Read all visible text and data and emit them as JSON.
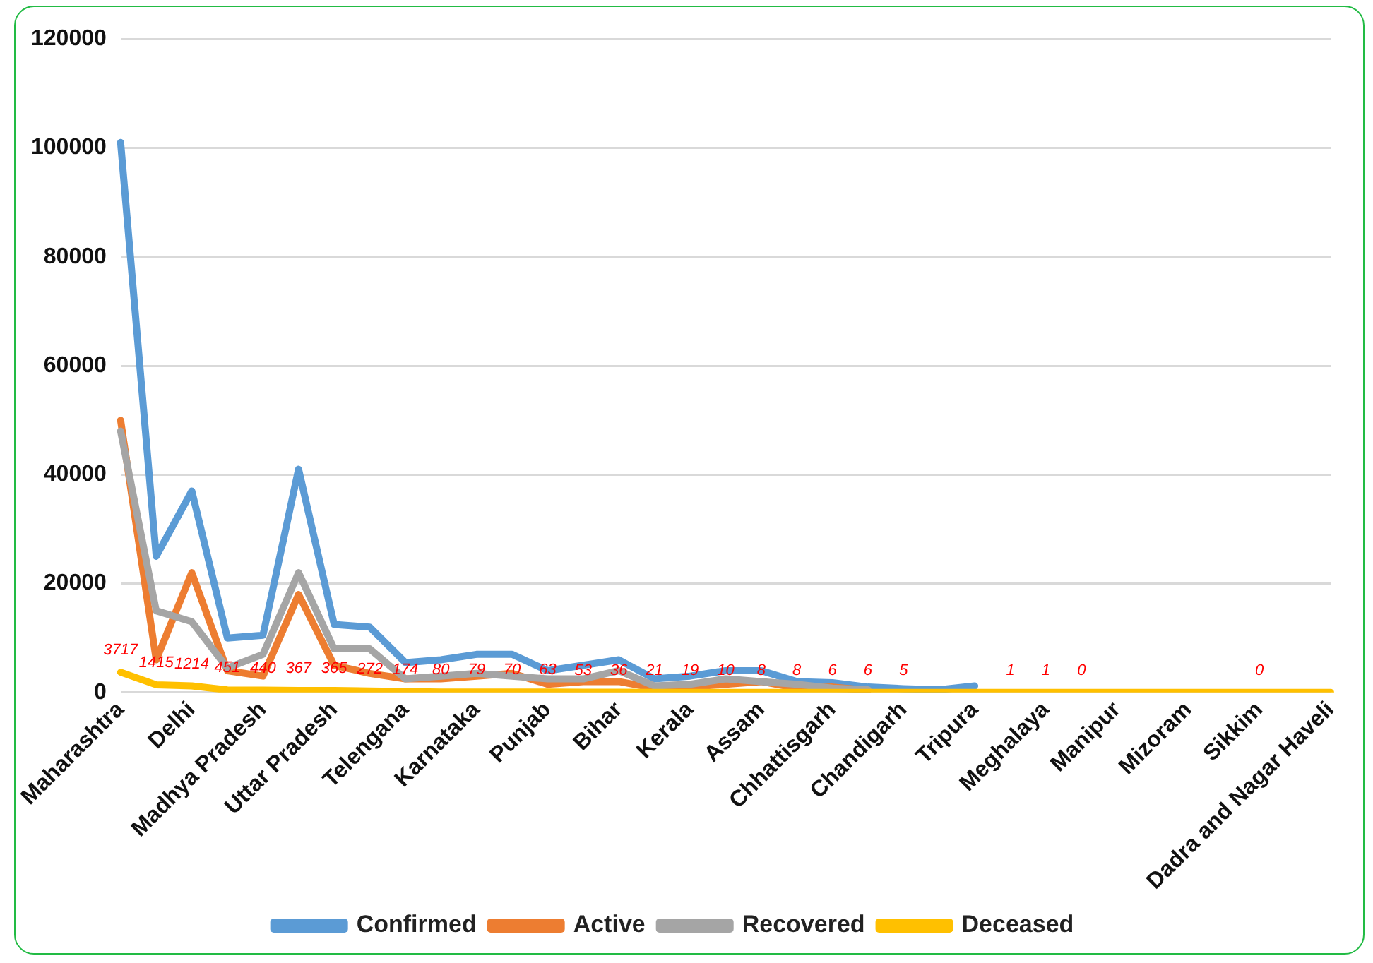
{
  "chart_data": {
    "type": "line",
    "categories": [
      "Maharashtra",
      null,
      "Delhi",
      null,
      "Madhya Pradesh",
      null,
      "Uttar Pradesh",
      null,
      "Telengana",
      null,
      "Karnataka",
      null,
      "Punjab",
      null,
      "Bihar",
      null,
      "Kerala",
      null,
      "Assam",
      null,
      "Chhattisgarh",
      null,
      "Chandigarh",
      null,
      "Tripura",
      null,
      "Meghalaya",
      null,
      "Manipur",
      null,
      "Mizoram",
      null,
      "Sikkim",
      null,
      "Dadra and Nagar Haveli"
    ],
    "series": [
      {
        "name": "Confirmed",
        "color": "#5b9bd5",
        "values": [
          101000,
          25000,
          37000,
          10000,
          10500,
          41000,
          12500,
          12000,
          5500,
          6000,
          7000,
          7000,
          4000,
          5000,
          6000,
          2500,
          3000,
          4000,
          4000,
          2000,
          1800,
          1000,
          700,
          500,
          1200,
          null,
          null,
          null,
          null,
          null,
          null,
          null,
          null,
          null,
          null
        ]
      },
      {
        "name": "Active",
        "color": "#ed7d31",
        "values": [
          50000,
          6000,
          22000,
          4000,
          3000,
          18000,
          5000,
          3500,
          2500,
          2500,
          3000,
          3500,
          1500,
          2000,
          2000,
          800,
          1000,
          1500,
          2000,
          800,
          1000,
          400,
          null,
          null,
          null,
          null,
          null,
          null,
          null,
          null,
          null,
          null,
          null,
          null,
          null
        ]
      },
      {
        "name": "Recovered",
        "color": "#a5a5a5",
        "values": [
          48000,
          15000,
          13000,
          4500,
          7000,
          22000,
          8000,
          8000,
          2500,
          3000,
          3500,
          3000,
          2500,
          2500,
          4000,
          1200,
          1500,
          2500,
          2000,
          1500,
          800,
          500,
          null,
          null,
          null,
          null,
          null,
          null,
          null,
          null,
          null,
          null,
          null,
          null,
          null
        ]
      },
      {
        "name": "Deceased",
        "color": "#ffc000",
        "values": [
          3717,
          1415,
          1214,
          451,
          440,
          367,
          365,
          272,
          174,
          80,
          79,
          70,
          63,
          53,
          36,
          21,
          19,
          10,
          8,
          8,
          6,
          6,
          5,
          0,
          0,
          1,
          1,
          0,
          0,
          0,
          0,
          0,
          0,
          0,
          0
        ],
        "value_labels": [
          "3717",
          "1415",
          "1214",
          "451",
          "440",
          "367",
          "365",
          "272",
          "174",
          "80",
          "79",
          "70",
          "63",
          "53",
          "36",
          "21",
          "19",
          "10",
          "8",
          "8",
          "6",
          "6",
          "5",
          null,
          null,
          "1",
          "1",
          "0",
          null,
          null,
          null,
          null,
          "0",
          null,
          null
        ]
      }
    ],
    "ylim": [
      0,
      120000
    ],
    "yticks": [
      0,
      20000,
      40000,
      60000,
      80000,
      100000,
      120000
    ],
    "grid": "y",
    "legend": "bottom",
    "marker": "none",
    "line_style": "solid"
  }
}
